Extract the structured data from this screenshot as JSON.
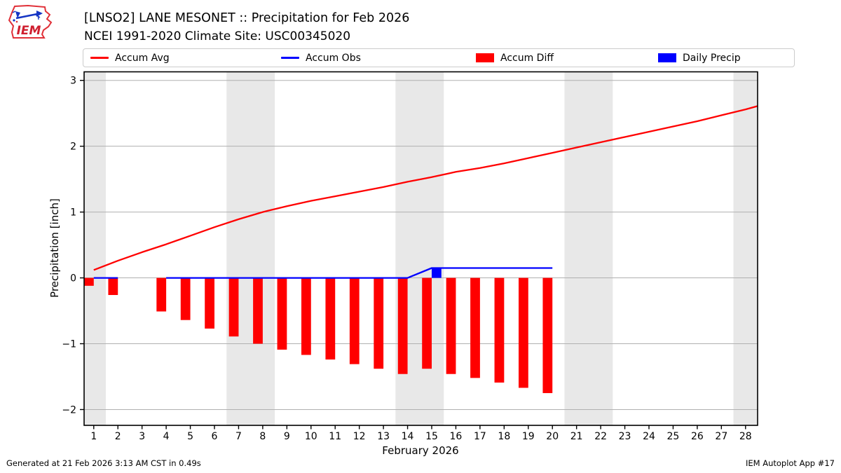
{
  "header": {
    "title": "[LNSO2] LANE MESONET :: Precipitation for Feb 2026",
    "subtitle": "NCEI 1991-2020 Climate Site: USC00345020",
    "logo_text": "IEM"
  },
  "legend": [
    {
      "label": "Accum Avg",
      "swatch": "line",
      "color": "#ff0000"
    },
    {
      "label": "Accum Obs",
      "swatch": "line",
      "color": "#0000ff"
    },
    {
      "label": "Accum Diff",
      "swatch": "box",
      "color": "#ff0000"
    },
    {
      "label": "Daily Precip",
      "swatch": "box",
      "color": "#0000ff"
    }
  ],
  "footer": {
    "left": "Generated at 21 Feb 2026 3:13 AM CST in 0.49s",
    "right": "IEM Autoplot App #17"
  },
  "chart_data": {
    "type": "line+bar",
    "xlabel": "February 2026",
    "ylabel": "Precipitation [inch]",
    "xlim": [
      0.6,
      28.5
    ],
    "ylim": [
      -2.24,
      3.13
    ],
    "xticks": [
      1,
      2,
      3,
      4,
      5,
      6,
      7,
      8,
      9,
      10,
      11,
      12,
      13,
      14,
      15,
      16,
      17,
      18,
      19,
      20,
      21,
      22,
      23,
      24,
      25,
      26,
      27,
      28
    ],
    "yticks": [
      -2,
      -1,
      0,
      1,
      2,
      3
    ],
    "grid_color": "#b0b0b0",
    "band_color": "#e8e8e8",
    "weekend_bands": [
      [
        0.6,
        1.5
      ],
      [
        6.5,
        8.5
      ],
      [
        13.5,
        15.5
      ],
      [
        20.5,
        22.5
      ],
      [
        27.5,
        28.5
      ]
    ],
    "series": [
      {
        "name": "Accum Avg",
        "type": "line",
        "color": "#ff0000",
        "points": [
          [
            1,
            0.12
          ],
          [
            2,
            0.26
          ],
          [
            3,
            0.39
          ],
          [
            4,
            0.51
          ],
          [
            5,
            0.64
          ],
          [
            6,
            0.77
          ],
          [
            7,
            0.89
          ],
          [
            8,
            1.0
          ],
          [
            9,
            1.09
          ],
          [
            10,
            1.17
          ],
          [
            11,
            1.24
          ],
          [
            12,
            1.31
          ],
          [
            13,
            1.38
          ],
          [
            14,
            1.46
          ],
          [
            15,
            1.53
          ],
          [
            16,
            1.61
          ],
          [
            17,
            1.67
          ],
          [
            18,
            1.74
          ],
          [
            19,
            1.82
          ],
          [
            20,
            1.9
          ],
          [
            21,
            1.98
          ],
          [
            22,
            2.06
          ],
          [
            23,
            2.14
          ],
          [
            24,
            2.22
          ],
          [
            25,
            2.3
          ],
          [
            26,
            2.38
          ],
          [
            27,
            2.47
          ],
          [
            28,
            2.56
          ],
          [
            28.5,
            2.61
          ]
        ]
      },
      {
        "name": "Accum Obs",
        "type": "line",
        "color": "#0000ff",
        "segments": [
          [
            [
              1,
              0
            ],
            [
              2,
              0
            ]
          ],
          [
            [
              4,
              0
            ],
            [
              14,
              0
            ],
            [
              15,
              0.15
            ],
            [
              20,
              0.15
            ]
          ]
        ]
      },
      {
        "name": "Accum Diff",
        "type": "bar",
        "color": "#ff0000",
        "align": "left",
        "bar_width": 0.4,
        "values": [
          [
            1,
            -0.12
          ],
          [
            2,
            -0.26
          ],
          [
            4,
            -0.51
          ],
          [
            5,
            -0.64
          ],
          [
            6,
            -0.77
          ],
          [
            7,
            -0.89
          ],
          [
            8,
            -1.0
          ],
          [
            9,
            -1.09
          ],
          [
            10,
            -1.17
          ],
          [
            11,
            -1.24
          ],
          [
            12,
            -1.31
          ],
          [
            13,
            -1.38
          ],
          [
            14,
            -1.46
          ],
          [
            15,
            -1.38
          ],
          [
            16,
            -1.46
          ],
          [
            17,
            -1.52
          ],
          [
            18,
            -1.59
          ],
          [
            19,
            -1.67
          ],
          [
            20,
            -1.75
          ]
        ]
      },
      {
        "name": "Daily Precip",
        "type": "bar",
        "color": "#0000ff",
        "align": "right",
        "bar_width": 0.4,
        "values": [
          [
            15,
            0.15
          ]
        ]
      }
    ]
  }
}
